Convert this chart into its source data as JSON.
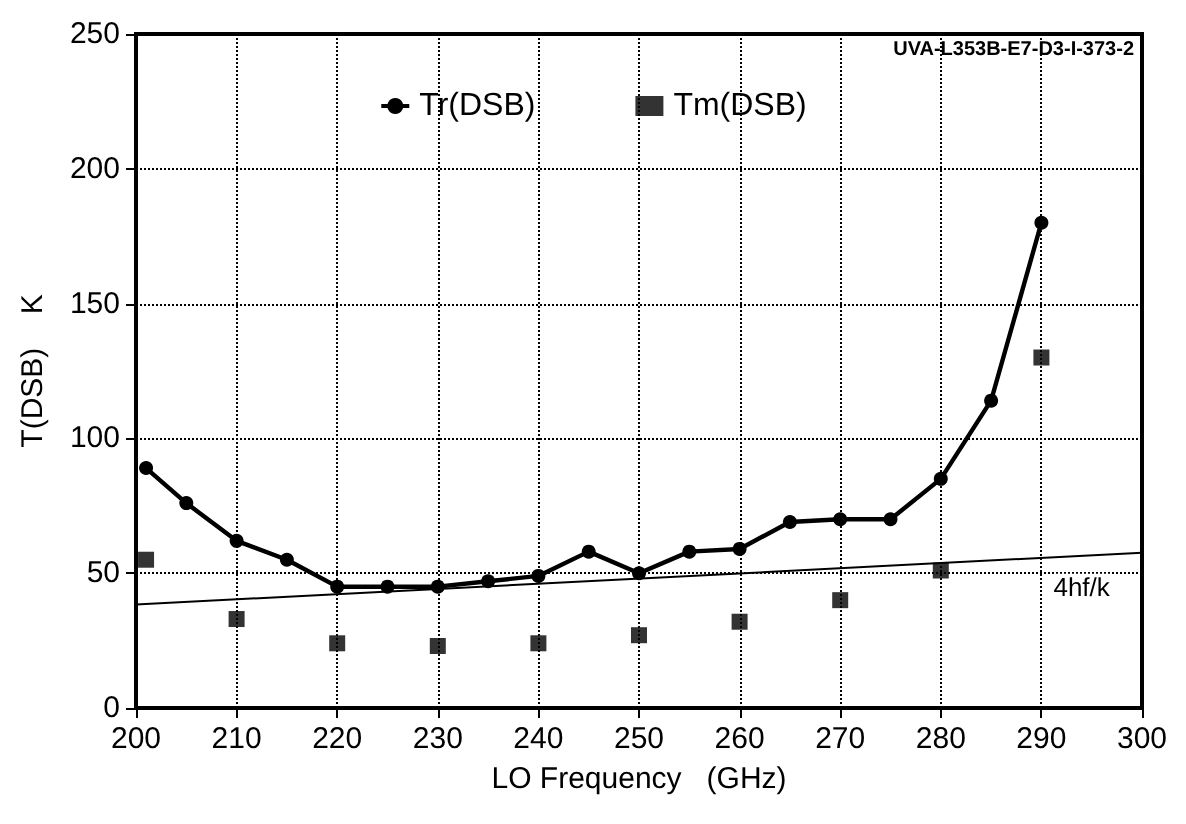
{
  "chart_data": {
    "type": "line",
    "xlabel": "LO Frequency   (GHz)",
    "ylabel": "T(DSB)    K",
    "xlim": [
      200,
      300
    ],
    "xticks": [
      200,
      210,
      220,
      230,
      240,
      250,
      260,
      270,
      280,
      290,
      300
    ],
    "ylim": [
      0,
      250
    ],
    "yticks": [
      0,
      50,
      100,
      150,
      200,
      250
    ],
    "grid": true,
    "legend": "top",
    "line_style": "solid",
    "series": [
      {
        "name": "Tr(DSB)",
        "marker": "circle",
        "color": "#000000",
        "x": [
          201,
          205,
          210,
          215,
          220,
          225,
          230,
          235,
          240,
          245,
          250,
          255,
          260,
          265,
          270,
          275,
          280,
          285,
          290
        ],
        "values": [
          89,
          76,
          62,
          55,
          45,
          45,
          45,
          47,
          49,
          58,
          50,
          58,
          59,
          69,
          70,
          70,
          85,
          114,
          180
        ]
      },
      {
        "name": "Tm(DSB)",
        "type": "scatter",
        "marker": "square",
        "color": "#000000",
        "x": [
          201,
          210,
          220,
          230,
          240,
          250,
          260,
          270,
          280,
          290
        ],
        "values": [
          55,
          33,
          24,
          23,
          24,
          27,
          32,
          40,
          51,
          130
        ]
      },
      {
        "marker": "none",
        "color": "#000000",
        "x": [
          200,
          300
        ],
        "values": [
          38.4,
          57.6
        ]
      }
    ],
    "annotations": [
      "UVA-L353B-E7-D3-I-373-2",
      {
        "text": "4hf/k",
        "x": 294,
        "y": 45
      }
    ]
  }
}
